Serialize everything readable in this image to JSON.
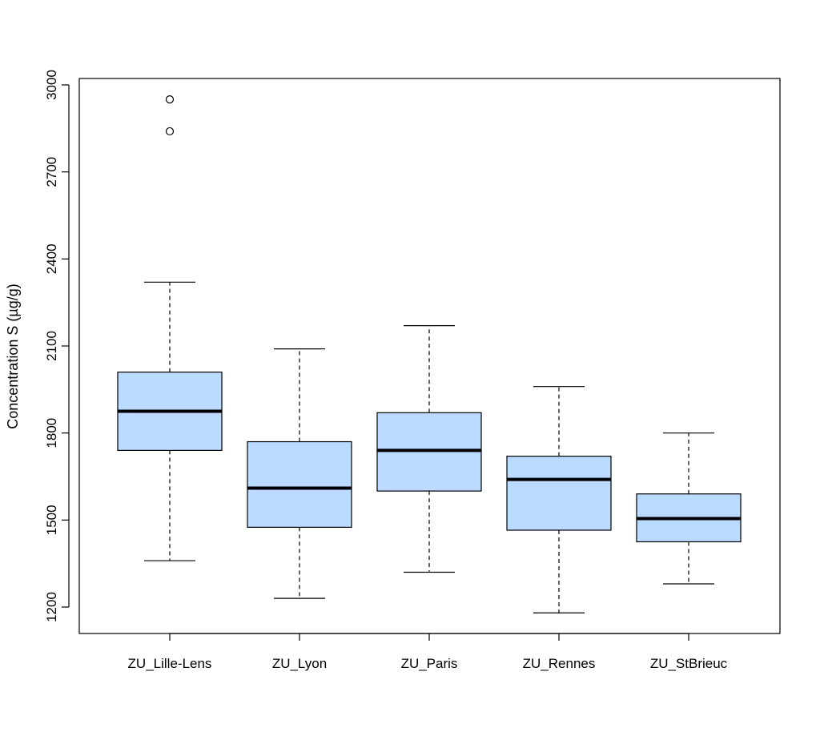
{
  "chart_data": {
    "type": "boxplot",
    "title": "",
    "xlabel": "",
    "ylabel": "Concentration S (µg/g)",
    "ylim": [
      1110,
      3020
    ],
    "yticks": [
      1200,
      1500,
      1800,
      2100,
      2400,
      2700,
      3000
    ],
    "box_color": "#bbdaff",
    "categories": [
      "ZU_Lille-Lens",
      "ZU_Lyon",
      "ZU_Paris",
      "ZU_Rennes",
      "ZU_StBrieuc"
    ],
    "boxes": [
      {
        "whisker_low": 1360,
        "q1": 1740,
        "median": 1875,
        "q3": 2010,
        "whisker_high": 2320,
        "outliers": [
          2840,
          2950
        ]
      },
      {
        "whisker_low": 1230,
        "q1": 1475,
        "median": 1610,
        "q3": 1770,
        "whisker_high": 2090,
        "outliers": []
      },
      {
        "whisker_low": 1320,
        "q1": 1600,
        "median": 1740,
        "q3": 1870,
        "whisker_high": 2170,
        "outliers": []
      },
      {
        "whisker_low": 1180,
        "q1": 1465,
        "median": 1640,
        "q3": 1720,
        "whisker_high": 1960,
        "outliers": []
      },
      {
        "whisker_low": 1280,
        "q1": 1425,
        "median": 1505,
        "q3": 1590,
        "whisker_high": 1800,
        "outliers": []
      }
    ]
  }
}
